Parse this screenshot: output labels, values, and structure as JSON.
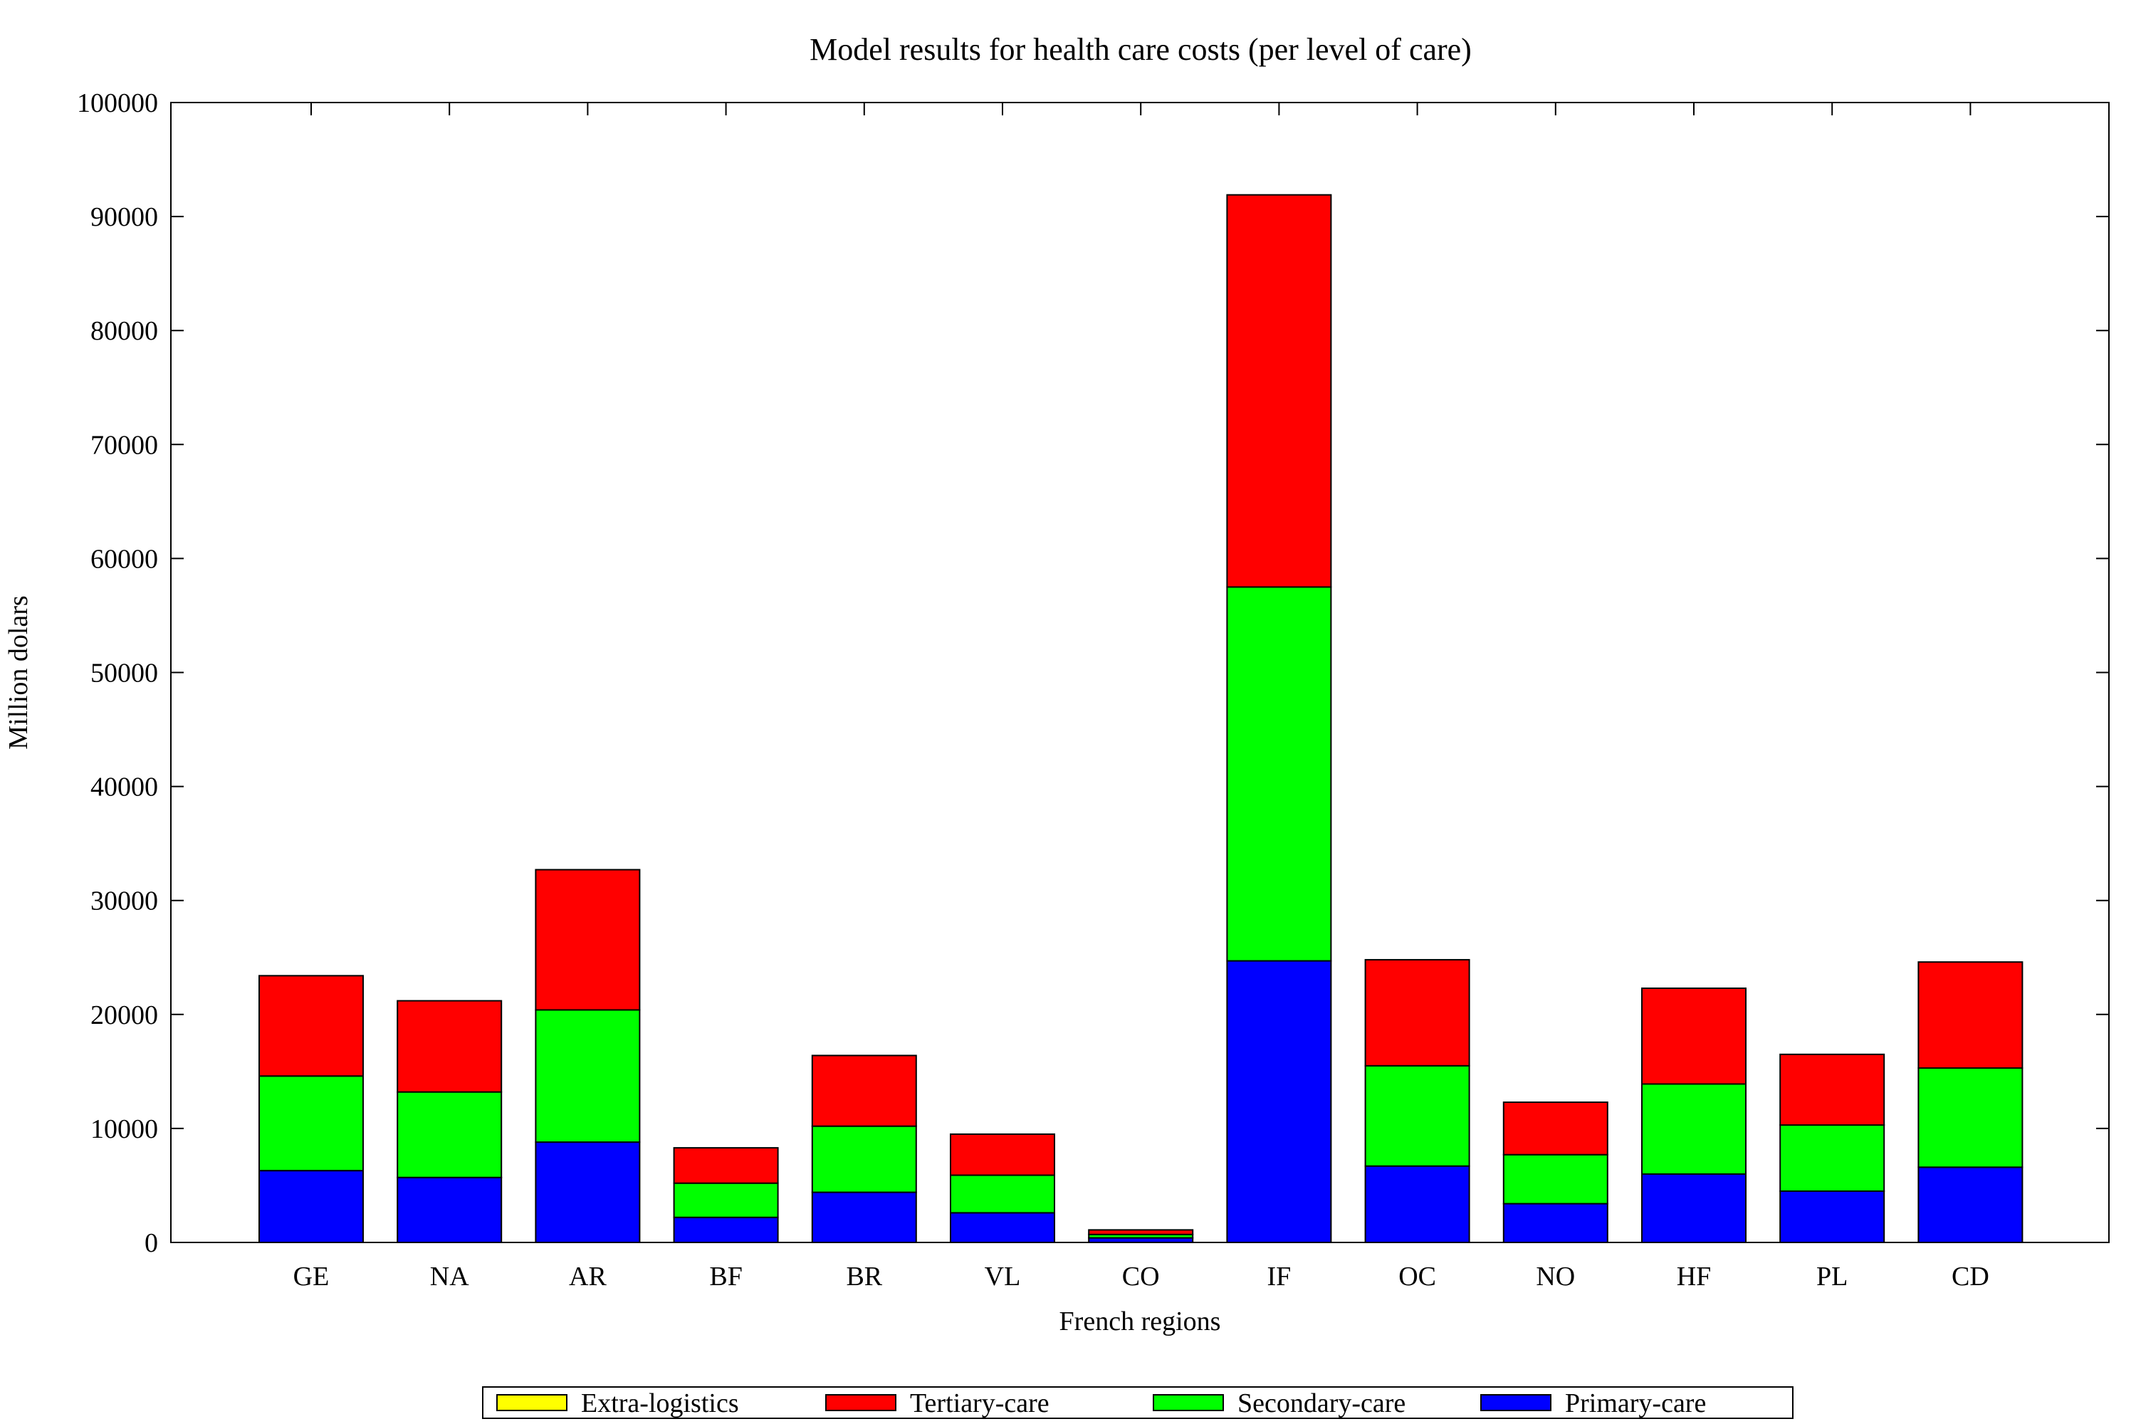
{
  "chart_data": {
    "type": "bar",
    "stacked": true,
    "title": "Model results for health care costs (per level of care)",
    "xlabel": "French regions",
    "ylabel": "Million dolars",
    "ylim": [
      0,
      100000
    ],
    "yticks": [
      "0",
      "10000",
      "20000",
      "30000",
      "40000",
      "50000",
      "60000",
      "70000",
      "80000",
      "90000",
      "100000"
    ],
    "grid": false,
    "legend_position": "bottom",
    "categories": [
      "GE",
      "NA",
      "AR",
      "BF",
      "BR",
      "VL",
      "CO",
      "IF",
      "OC",
      "NO",
      "HF",
      "PL",
      "CD"
    ],
    "series": [
      {
        "name": "Primary-care",
        "color": "#0000ff",
        "values": [
          6300,
          5700,
          8800,
          2200,
          4400,
          2600,
          400,
          24700,
          6700,
          3400,
          6000,
          4500,
          6600
        ]
      },
      {
        "name": "Secondary-care",
        "color": "#00ff00",
        "values": [
          8300,
          7500,
          11600,
          3000,
          5800,
          3300,
          300,
          32800,
          8800,
          4300,
          7900,
          5800,
          8700
        ]
      },
      {
        "name": "Tertiary-care",
        "color": "#ff0000",
        "values": [
          8800,
          8000,
          12300,
          3100,
          6200,
          3600,
          400,
          34400,
          9300,
          4600,
          8400,
          6200,
          9300
        ]
      },
      {
        "name": "Extra-logistics",
        "color": "#ffff00",
        "values": [
          0,
          0,
          0,
          0,
          0,
          0,
          0,
          0,
          0,
          0,
          0,
          0,
          0
        ]
      }
    ],
    "legend_order": [
      "Extra-logistics",
      "Tertiary-care",
      "Secondary-care",
      "Primary-care"
    ]
  }
}
